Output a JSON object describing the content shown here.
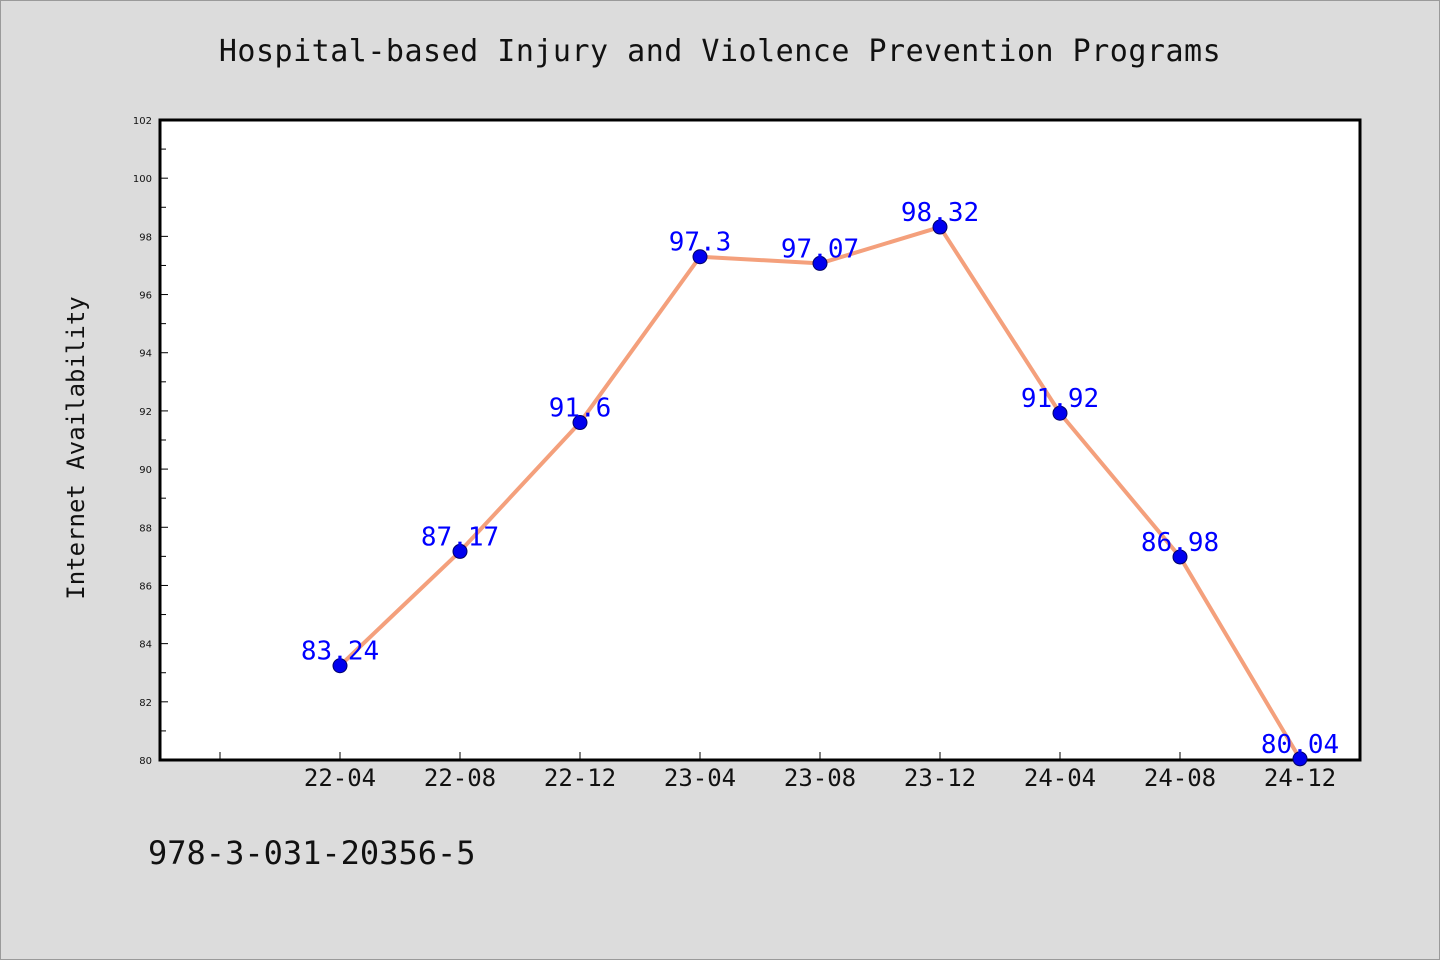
{
  "colors": {
    "background": "#dcdcdc",
    "plot_area": "#ffffff",
    "line": "#f4a07c",
    "marker": "#0000ee",
    "data_label": "#0000ff"
  },
  "footer_text": "978-3-031-20356-5",
  "chart_data": {
    "type": "line",
    "title": "Hospital-based Injury and Violence Prevention Programs",
    "xlabel": "",
    "ylabel": "Internet Availability",
    "categories": [
      "22-04",
      "22-08",
      "22-12",
      "23-04",
      "23-08",
      "23-12",
      "24-04",
      "24-08",
      "24-12"
    ],
    "series": [
      {
        "values": [
          83.24,
          87.17,
          91.6,
          97.3,
          97.07,
          98.32,
          91.92,
          86.98,
          80.04
        ],
        "data_labels": [
          "83.24",
          "87.17",
          "91.6",
          "97.3",
          "97.07",
          "98.32",
          "91.92",
          "86.98",
          "80.04"
        ]
      }
    ],
    "ylim": [
      80,
      102
    ],
    "yticks": [
      80,
      82,
      84,
      86,
      88,
      90,
      92,
      94,
      96,
      98,
      100,
      102
    ],
    "grid": false,
    "legend": "none"
  }
}
